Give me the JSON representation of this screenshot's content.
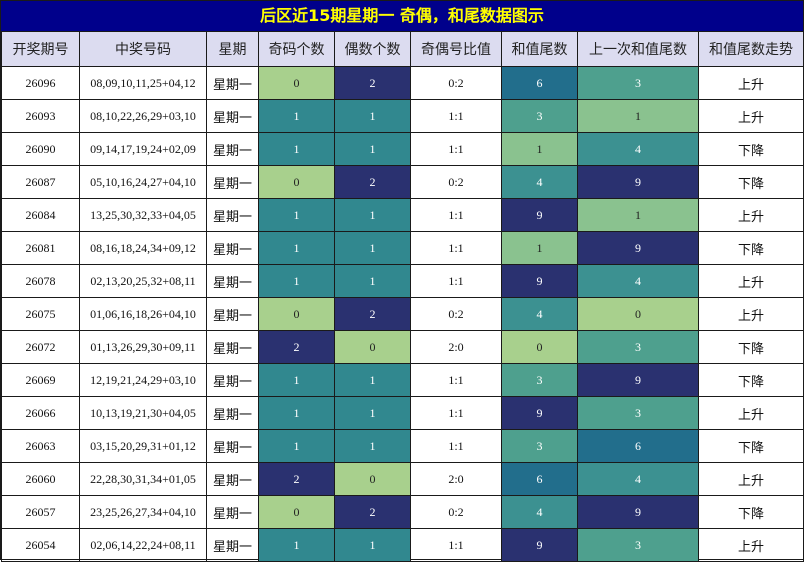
{
  "title": "后区近15期星期一 奇偶，和尾数据图示",
  "headers": [
    "开奖期号",
    "中奖号码",
    "星期",
    "奇码个数",
    "偶数个数",
    "奇偶号比值",
    "和值尾数",
    "上一次和值尾数",
    "和值尾数走势"
  ],
  "palette": {
    "0": "#a8d08d",
    "1": "#31888f",
    "2": "#2a3170",
    "3": "#4ea08e",
    "4": "#3c9191",
    "6": "#226e8c",
    "9": "#2a3170",
    "lightgreen": "#8ac28f"
  },
  "rows": [
    {
      "issue": "26096",
      "numbers": "08,09,10,11,25+04,12",
      "week": "星期一",
      "odd": "0",
      "even": "2",
      "ratio": "0:2",
      "tail": "6",
      "prev_tail": "3",
      "trend": "上升"
    },
    {
      "issue": "26093",
      "numbers": "08,10,22,26,29+03,10",
      "week": "星期一",
      "odd": "1",
      "even": "1",
      "ratio": "1:1",
      "tail": "3",
      "prev_tail": "1",
      "trend": "上升"
    },
    {
      "issue": "26090",
      "numbers": "09,14,17,19,24+02,09",
      "week": "星期一",
      "odd": "1",
      "even": "1",
      "ratio": "1:1",
      "tail": "1",
      "prev_tail": "4",
      "trend": "下降"
    },
    {
      "issue": "26087",
      "numbers": "05,10,16,24,27+04,10",
      "week": "星期一",
      "odd": "0",
      "even": "2",
      "ratio": "0:2",
      "tail": "4",
      "prev_tail": "9",
      "trend": "下降"
    },
    {
      "issue": "26084",
      "numbers": "13,25,30,32,33+04,05",
      "week": "星期一",
      "odd": "1",
      "even": "1",
      "ratio": "1:1",
      "tail": "9",
      "prev_tail": "1",
      "trend": "上升"
    },
    {
      "issue": "26081",
      "numbers": "08,16,18,24,34+09,12",
      "week": "星期一",
      "odd": "1",
      "even": "1",
      "ratio": "1:1",
      "tail": "1",
      "prev_tail": "9",
      "trend": "下降"
    },
    {
      "issue": "26078",
      "numbers": "02,13,20,25,32+08,11",
      "week": "星期一",
      "odd": "1",
      "even": "1",
      "ratio": "1:1",
      "tail": "9",
      "prev_tail": "4",
      "trend": "上升"
    },
    {
      "issue": "26075",
      "numbers": "01,06,16,18,26+04,10",
      "week": "星期一",
      "odd": "0",
      "even": "2",
      "ratio": "0:2",
      "tail": "4",
      "prev_tail": "0",
      "trend": "上升"
    },
    {
      "issue": "26072",
      "numbers": "01,13,26,29,30+09,11",
      "week": "星期一",
      "odd": "2",
      "even": "0",
      "ratio": "2:0",
      "tail": "0",
      "prev_tail": "3",
      "trend": "下降"
    },
    {
      "issue": "26069",
      "numbers": "12,19,21,24,29+03,10",
      "week": "星期一",
      "odd": "1",
      "even": "1",
      "ratio": "1:1",
      "tail": "3",
      "prev_tail": "9",
      "trend": "下降"
    },
    {
      "issue": "26066",
      "numbers": "10,13,19,21,30+04,05",
      "week": "星期一",
      "odd": "1",
      "even": "1",
      "ratio": "1:1",
      "tail": "9",
      "prev_tail": "3",
      "trend": "上升"
    },
    {
      "issue": "26063",
      "numbers": "03,15,20,29,31+01,12",
      "week": "星期一",
      "odd": "1",
      "even": "1",
      "ratio": "1:1",
      "tail": "3",
      "prev_tail": "6",
      "trend": "下降"
    },
    {
      "issue": "26060",
      "numbers": "22,28,30,31,34+01,05",
      "week": "星期一",
      "odd": "2",
      "even": "0",
      "ratio": "2:0",
      "tail": "6",
      "prev_tail": "4",
      "trend": "上升"
    },
    {
      "issue": "26057",
      "numbers": "23,25,26,27,34+04,10",
      "week": "星期一",
      "odd": "0",
      "even": "2",
      "ratio": "0:2",
      "tail": "4",
      "prev_tail": "9",
      "trend": "下降"
    },
    {
      "issue": "26054",
      "numbers": "02,06,14,22,24+08,11",
      "week": "星期一",
      "odd": "1",
      "even": "1",
      "ratio": "1:1",
      "tail": "9",
      "prev_tail": "3",
      "trend": "上升"
    }
  ]
}
